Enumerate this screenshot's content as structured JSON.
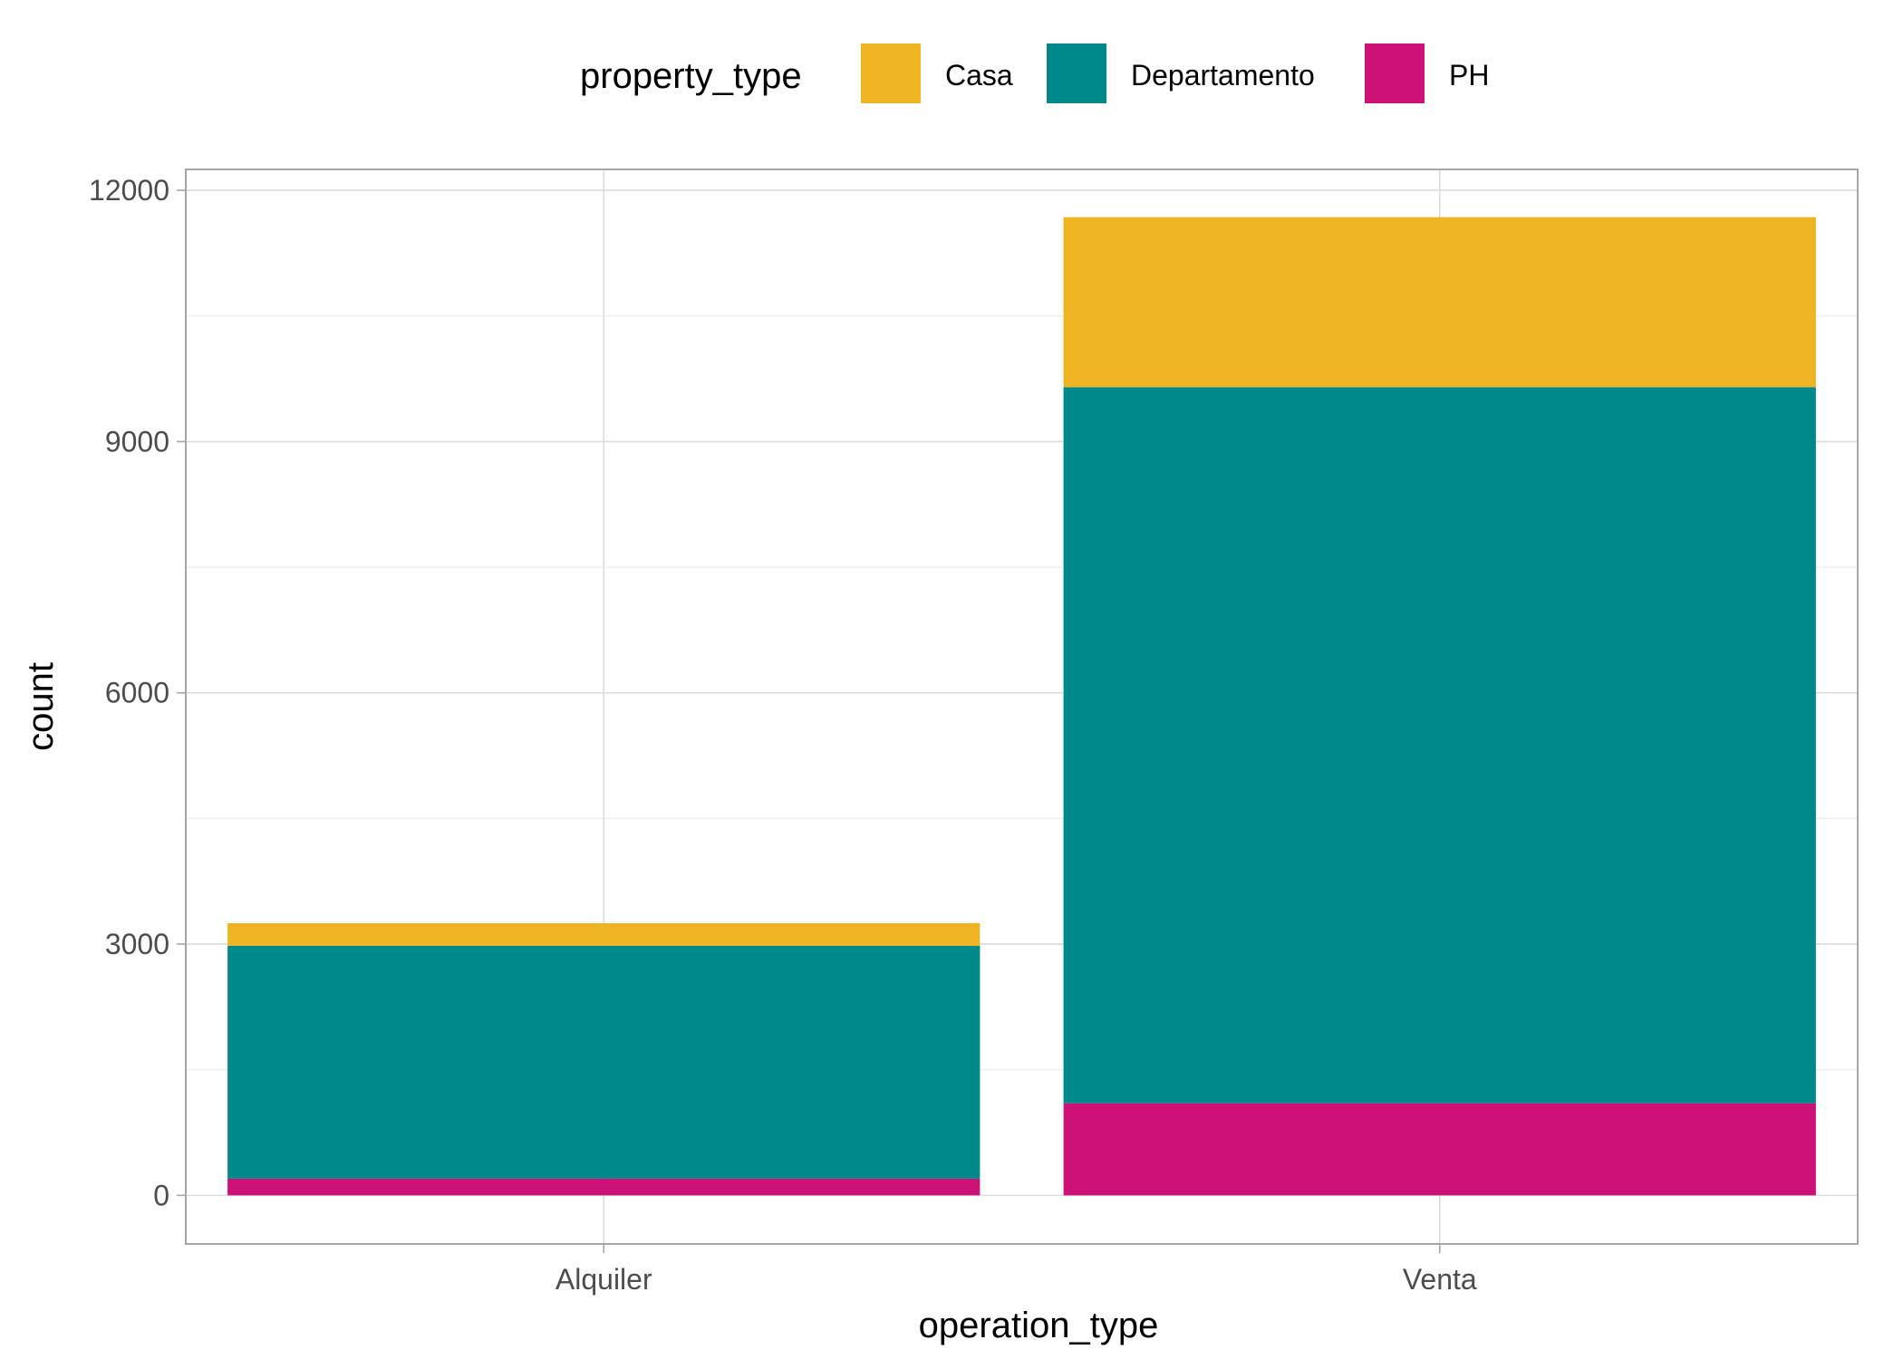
{
  "chart_data": {
    "type": "bar",
    "stacked": true,
    "categories": [
      "Alquiler",
      "Venta"
    ],
    "series": [
      {
        "name": "PH",
        "color": "#CC1177",
        "values": [
          200,
          1100
        ]
      },
      {
        "name": "Departamento",
        "color": "#00898A",
        "values": [
          2780,
          8550
        ]
      },
      {
        "name": "Casa",
        "color": "#EEB422",
        "values": [
          270,
          2030
        ]
      }
    ],
    "xlabel": "operation_type",
    "ylabel": "count",
    "ylim": [
      -580,
      12250
    ],
    "yticks": [
      0,
      3000,
      6000,
      9000,
      12000
    ],
    "yticks_minor": [
      1500,
      4500,
      7500,
      10500
    ],
    "legend": {
      "title": "property_type",
      "position": "top",
      "entries": [
        "Casa",
        "Departamento",
        "PH"
      ]
    },
    "grid": true
  }
}
